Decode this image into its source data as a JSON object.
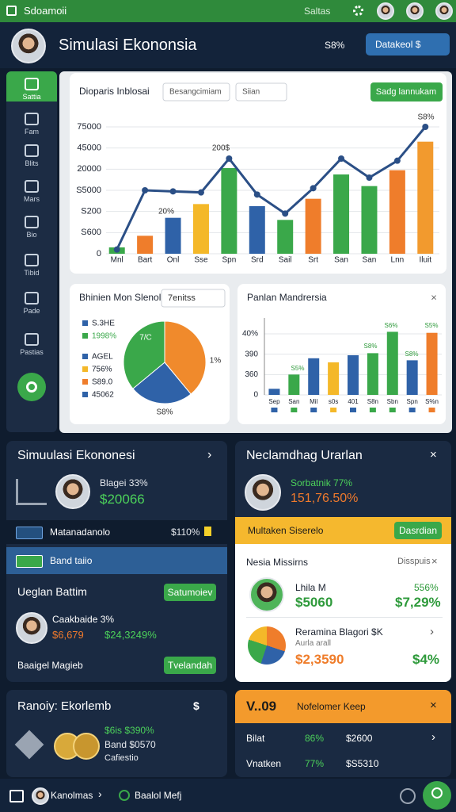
{
  "status_bar": {
    "app": "Sdoamoii",
    "search": "Saltas"
  },
  "header": {
    "title": "Simulasi Ekononsia",
    "search": "S8%",
    "button": "Datakeol $"
  },
  "sidebar": {
    "items": [
      "Sattia",
      "Fam",
      "Blits",
      "Mars",
      "Bio",
      "Tibid",
      "Pade",
      "Pastias"
    ]
  },
  "chart_data": [
    {
      "type": "combo",
      "title": "Dioparis Inblosai",
      "filters": [
        "Besangcimiam",
        "Siian"
      ],
      "button": "Sadg lannukam",
      "categories": [
        "Mnl",
        "Bart",
        "Onl",
        "Sse",
        "Spn",
        "Srd",
        "Sail",
        "Srt",
        "San",
        "San",
        "Lnn",
        "Iluit"
      ],
      "values": [
        0.3,
        0.85,
        1.7,
        2.35,
        4.05,
        2.25,
        1.6,
        2.6,
        3.75,
        3.2,
        3.95,
        5.3
      ],
      "colors": [
        "#3aa84a",
        "#ef7d2b",
        "#2f62a8",
        "#f4b829",
        "#3aa84a",
        "#2f62a8",
        "#3aa84a",
        "#ef7d2b",
        "#3aa84a",
        "#3aa84a",
        "#ef7d2b",
        "#f29a2e"
      ],
      "line_values": [
        0.2,
        3.0,
        2.95,
        2.9,
        4.5,
        2.8,
        1.9,
        3.1,
        4.5,
        3.6,
        4.4,
        6.0
      ],
      "line_color": "#2b4f86",
      "ylim": [
        0,
        6
      ],
      "yticks": [
        0,
        {
          "value": 1,
          "label": "S600"
        },
        {
          "value": 2,
          "label": "S200"
        },
        {
          "value": 3,
          "label": "S5000"
        },
        {
          "value": 4,
          "label": "20000"
        },
        {
          "value": 5,
          "label": "45000"
        },
        {
          "value": 6,
          "label": "75000"
        }
      ],
      "grid": true,
      "annotations": [
        "S8%",
        "200$",
        "20%"
      ]
    },
    {
      "type": "pie",
      "title": "Bhinien Mon Slenol",
      "dropdown": "7enitss",
      "legend": [
        {
          "label": "S.3HE",
          "color": "#2f62a8"
        },
        {
          "label": "1998%",
          "color": "#3aa84a"
        },
        {
          "label": "AGEL",
          "color": "#2f62a8"
        },
        {
          "label": "756%",
          "color": "#f4b829"
        },
        {
          "label": "S89.0",
          "color": "#ef7d2b"
        },
        {
          "label": "45062",
          "color": "#2f62a8"
        }
      ],
      "categories": [
        null,
        null,
        null
      ],
      "values": [
        39,
        25,
        36
      ],
      "colors": [
        "#f08a2c",
        "#2f62a8",
        "#3aa84a"
      ],
      "annotations": [
        "7/C",
        "1%",
        "S8%"
      ]
    },
    {
      "type": "bar",
      "title": "Panlan Mandrersia",
      "categories": [
        "Sep",
        "San",
        "Mil",
        "s0s",
        "401",
        "S8n",
        "Sbn",
        "Spn",
        "S%n"
      ],
      "values": [
        0.3,
        1.0,
        1.8,
        1.6,
        1.95,
        2.05,
        3.1,
        1.7,
        3.05
      ],
      "colors": [
        "#2f62a8",
        "#3aa84a",
        "#2f62a8",
        "#f4b829",
        "#2f62a8",
        "#3aa84a",
        "#3aa84a",
        "#2f62a8",
        "#ef7d2b"
      ],
      "ylim": [
        0,
        3
      ],
      "yticks": [
        0,
        {
          "value": 1,
          "label": "360"
        },
        {
          "value": 2,
          "label": "390"
        },
        {
          "value": 3,
          "label": "40%"
        }
      ],
      "grid": true,
      "annotations": [
        "S5%",
        "S8%",
        "S6%",
        "S8%",
        "S5%"
      ]
    }
  ],
  "simulation_card": {
    "title": "Simuulasi Ekononesi",
    "person": "Blagei 33%",
    "amount": "$20066",
    "rows": [
      {
        "label": "Matanadanolo",
        "value": "$110%"
      },
      {
        "label": "Band taiio"
      }
    ],
    "section": "Ueglan Battim",
    "section_button": "Satumoiev",
    "entry": {
      "name": "Caakbaide 3%",
      "amount": "$6,679",
      "change": "$24,3249%"
    },
    "footer": "Baaigel Magieb",
    "footer_button": "Tvelandah"
  },
  "notifications_card": {
    "title": "Neclamdhag Urarlan",
    "person": "Sorbatnik 77%",
    "amount": "151,76.50%",
    "banner": "Multaken Siserelo",
    "banner_button": "Dasrdian",
    "list_title": "Nesia Missirns",
    "list_action": "Disspuis",
    "items": [
      {
        "name": "Lhila M",
        "amount": "$5060",
        "change": "556%",
        "total": "$7,29%"
      },
      {
        "name": "Reramina Blagori $K",
        "sub": "Aurla arall",
        "amount": "$2,3590",
        "total": "$4%"
      }
    ]
  },
  "summary_card": {
    "title": "Ranoiy: Ekorlemb",
    "currency": "$",
    "lines": [
      "$6is $390%",
      "Band $0570",
      "Cafiestio"
    ]
  },
  "orders_card": {
    "code": "V..09",
    "title": "Nofelomer Keep",
    "rows": [
      {
        "label": "Bilat",
        "pct": "86%",
        "amount": "$2600"
      },
      {
        "label": "Vnatken",
        "pct": "77%",
        "amount": "$S5310"
      }
    ]
  },
  "bottom_nav": {
    "user": "Kanolmas",
    "status": "Baalol Mefj"
  }
}
